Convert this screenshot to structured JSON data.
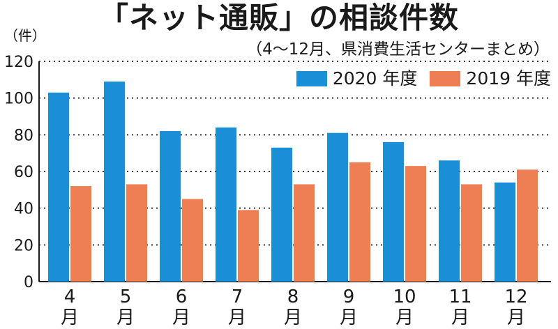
{
  "chart_data": {
    "type": "bar",
    "title": "「ネット通販」の相談件数",
    "subtitle": "（4～12月、県消費生活センターまとめ）",
    "ylabel": "（件）",
    "xlabel": "",
    "categories": [
      "4",
      "5",
      "6",
      "7",
      "8",
      "9",
      "10",
      "11",
      "12"
    ],
    "category_suffix": "月",
    "series": [
      {
        "name": "2020 年度",
        "color": "#1a8fd8",
        "values": [
          103,
          109,
          82,
          84,
          73,
          81,
          76,
          66,
          54
        ]
      },
      {
        "name": "2019 年度",
        "color": "#ee7f55",
        "values": [
          52,
          53,
          45,
          39,
          53,
          65,
          63,
          53,
          61
        ]
      }
    ],
    "ylim": [
      0,
      120
    ],
    "yticks": [
      "0",
      "20",
      "40",
      "60",
      "80",
      "100",
      "120"
    ],
    "grid": true,
    "legend_position": "top-right"
  }
}
